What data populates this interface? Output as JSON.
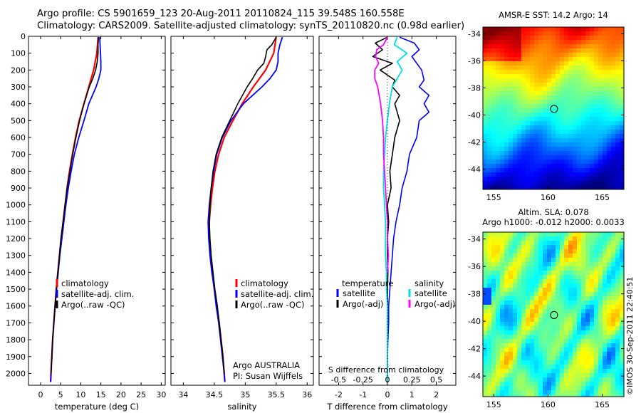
{
  "header": {
    "line1": "Argo profile: CS 5901659_123 20-Aug-2011 20110824_115 39.548S 160.558E",
    "line2": "Climatology: CARS2009. Satellite-adjusted climatology: synTS_20110820.nc (0.98d earlier)"
  },
  "stamp": "©IMOS 30-Sep-2011 22:40:51",
  "colors": {
    "climatology": "#ff0000",
    "satellite": "#0000ff",
    "argo": "#000000",
    "sat_sal": "#00e0e0",
    "argo_sal": "#ff00ff"
  },
  "chart_data": [
    {
      "type": "line",
      "id": "temp",
      "xlabel": "temperature (deg C)",
      "xlim": [
        -3,
        31
      ],
      "ylim": [
        0,
        2070
      ],
      "xticks": [
        0,
        5,
        10,
        15,
        20,
        25,
        30
      ],
      "yticks": [
        0,
        100,
        200,
        300,
        400,
        500,
        600,
        700,
        800,
        900,
        1000,
        1100,
        1200,
        1300,
        1400,
        1500,
        1600,
        1700,
        1800,
        1900,
        2000
      ],
      "legend": {
        "entries": [
          "climatology",
          "satellite-adj. clim.",
          "Argo(..raw -QC)"
        ],
        "colors": [
          "#ff0000",
          "#0000ff",
          "#000000"
        ]
      },
      "series": [
        {
          "name": "climatology",
          "color": "#ff0000",
          "width": 2.2,
          "y": [
            5,
            100,
            200,
            300,
            400,
            500,
            600,
            700,
            800,
            900,
            1000,
            1100,
            1200,
            1300,
            1400,
            1500,
            1600,
            1700,
            1800,
            1900,
            2000,
            2050
          ],
          "x": [
            14.3,
            14.0,
            13.2,
            12.0,
            10.8,
            9.6,
            8.7,
            7.9,
            7.2,
            6.6,
            6.1,
            5.6,
            5.1,
            4.7,
            4.3,
            3.9,
            3.6,
            3.3,
            3.0,
            2.8,
            2.6,
            2.5
          ]
        },
        {
          "name": "satellite-adj. clim.",
          "color": "#0000ff",
          "width": 1.8,
          "y": [
            5,
            50,
            100,
            150,
            200,
            250,
            300,
            400,
            500,
            600,
            700,
            800,
            900,
            1000,
            1100,
            1200,
            1300,
            1400,
            1500,
            1600,
            1700,
            1800,
            1900,
            2000,
            2050
          ],
          "x": [
            14.7,
            14.8,
            14.9,
            15.0,
            15.0,
            14.5,
            13.8,
            12.0,
            10.8,
            9.5,
            8.4,
            7.6,
            6.9,
            6.3,
            5.8,
            5.3,
            4.8,
            4.4,
            4.0,
            3.6,
            3.3,
            3.0,
            2.8,
            2.6,
            2.5
          ]
        },
        {
          "name": "Argo(..raw -QC)",
          "color": "#000000",
          "width": 1.6,
          "y": [
            5,
            50,
            100,
            150,
            200,
            250,
            300,
            400,
            500,
            600,
            700,
            800,
            900,
            1000,
            1100,
            1200,
            1300,
            1400,
            1500,
            1600,
            1700,
            1800,
            1900,
            2000
          ],
          "x": [
            14.4,
            14.3,
            14.3,
            14.1,
            13.7,
            13.0,
            12.1,
            10.8,
            9.7,
            8.8,
            8.0,
            7.3,
            6.6,
            6.1,
            5.6,
            5.1,
            4.7,
            4.3,
            3.9,
            3.6,
            3.3,
            3.0,
            2.8,
            2.6
          ]
        }
      ]
    },
    {
      "type": "line",
      "id": "sal",
      "xlabel": "salinity",
      "xlim": [
        33.8,
        36.1
      ],
      "ylim": [
        0,
        2070
      ],
      "xticks": [
        34,
        34.5,
        35,
        35.5,
        36
      ],
      "xticklabels": [
        "34",
        "34.5",
        "35",
        "35.5",
        "36"
      ],
      "yticks": [
        0,
        100,
        200,
        300,
        400,
        500,
        600,
        700,
        800,
        900,
        1000,
        1100,
        1200,
        1300,
        1400,
        1500,
        1600,
        1700,
        1800,
        1900,
        2000
      ],
      "legend": {
        "entries": [
          "climatology",
          "satellite-adj. clim.",
          "Argo(..raw -QC)"
        ],
        "colors": [
          "#ff0000",
          "#0000ff",
          "#000000"
        ]
      },
      "annotation": {
        "line1": "Argo AUSTRALIA",
        "line2": "PI: Susan Wijffels"
      },
      "series": [
        {
          "name": "climatology",
          "color": "#ff0000",
          "width": 2.2,
          "y": [
            5,
            100,
            200,
            300,
            400,
            500,
            600,
            700,
            800,
            900,
            1000,
            1100,
            1200,
            1300,
            1400,
            1500,
            1600,
            1700,
            1800,
            1900,
            2000,
            2050
          ],
          "x": [
            35.5,
            35.46,
            35.33,
            35.13,
            34.95,
            34.8,
            34.66,
            34.57,
            34.51,
            34.47,
            34.44,
            34.42,
            34.42,
            34.44,
            34.47,
            34.5,
            34.54,
            34.58,
            34.61,
            34.64,
            34.66,
            34.67
          ]
        },
        {
          "name": "satellite-adj. clim.",
          "color": "#0000ff",
          "width": 1.8,
          "y": [
            5,
            50,
            100,
            150,
            200,
            250,
            300,
            400,
            500,
            600,
            700,
            800,
            900,
            1000,
            1100,
            1200,
            1300,
            1400,
            1500,
            1600,
            1700,
            1800,
            1900,
            2000,
            2050
          ],
          "x": [
            35.6,
            35.56,
            35.53,
            35.53,
            35.5,
            35.4,
            35.27,
            34.97,
            34.77,
            34.63,
            34.54,
            34.49,
            34.45,
            34.42,
            34.4,
            34.41,
            34.43,
            34.46,
            34.5,
            34.53,
            34.57,
            34.6,
            34.63,
            34.66,
            34.67
          ]
        },
        {
          "name": "Argo(..raw -QC)",
          "color": "#000000",
          "width": 1.6,
          "y": [
            5,
            50,
            80,
            120,
            160,
            200,
            250,
            300,
            400,
            500,
            600,
            700,
            800,
            900,
            1000,
            1100,
            1200,
            1300,
            1400,
            1500,
            1600,
            1700,
            1800,
            1900,
            2000
          ],
          "x": [
            35.5,
            35.43,
            35.35,
            35.33,
            35.3,
            35.2,
            35.12,
            35.03,
            34.88,
            34.75,
            34.62,
            34.53,
            34.48,
            34.45,
            34.43,
            34.42,
            34.43,
            34.45,
            34.48,
            34.51,
            34.55,
            34.58,
            34.61,
            34.64,
            34.66
          ]
        }
      ]
    },
    {
      "type": "line",
      "id": "diff",
      "xlabel": "T difference from climatology",
      "xlabel2": "S difference from climatology",
      "xlim": [
        -2.8,
        2.8
      ],
      "ylim": [
        0,
        2070
      ],
      "xticks": [
        -2,
        -1,
        0,
        1,
        2
      ],
      "xticks2": [
        -0.5,
        -0.25,
        0,
        0.25,
        0.5
      ],
      "xticklabels2": [
        "-0.5",
        "-0.25",
        "0",
        "0.25",
        "0.5"
      ],
      "s_scale": 4,
      "yticks": [
        0,
        100,
        200,
        300,
        400,
        500,
        600,
        700,
        800,
        900,
        1000,
        1100,
        1200,
        1300,
        1400,
        1500,
        1600,
        1700,
        1800,
        1900,
        2000
      ],
      "legend": {
        "temperature": {
          "title": "temperature",
          "entries": [
            "satellite",
            "Argo(-adj)"
          ],
          "colors": [
            "#0000ff",
            "#000000"
          ]
        },
        "salinity": {
          "title": "salinity",
          "entries": [
            "satellite",
            "Argo(-adj)"
          ],
          "colors": [
            "#00e0e0",
            "#ff00ff"
          ]
        }
      },
      "series": [
        {
          "name": "satellite",
          "quantity": "temperature",
          "color": "#0000ff",
          "width": 1.6,
          "y": [
            5,
            40,
            80,
            120,
            160,
            200,
            260,
            300,
            350,
            400,
            450,
            500,
            600,
            700,
            800,
            900,
            1000,
            1100,
            1200,
            1300,
            1400,
            1500,
            1600,
            1700,
            1800,
            1900,
            2000,
            2050
          ],
          "x": [
            0.5,
            1.1,
            1.3,
            1.0,
            1.2,
            1.4,
            1.5,
            1.3,
            1.7,
            1.5,
            1.7,
            1.3,
            1.2,
            0.9,
            0.8,
            0.6,
            0.5,
            0.35,
            0.25,
            0.2,
            0.15,
            0.1,
            0.05,
            0.05,
            0.02,
            0.0,
            0.0,
            0.0
          ]
        },
        {
          "name": "Argo(-adj)",
          "quantity": "temperature",
          "color": "#000000",
          "width": 1.6,
          "y": [
            5,
            40,
            80,
            120,
            160,
            200,
            260,
            300,
            350,
            400,
            450,
            500,
            600,
            700,
            800,
            900,
            1000,
            1100,
            1200,
            1300,
            1400,
            1500,
            1600,
            1700,
            1800,
            1900,
            2000
          ],
          "x": [
            0.0,
            -0.5,
            -0.2,
            -0.6,
            0.2,
            -0.3,
            0.3,
            0.2,
            0.5,
            0.3,
            0.4,
            0.5,
            0.3,
            0.2,
            0.1,
            0.15,
            0.0,
            0.05,
            0.0,
            0.0,
            0.02,
            0.0,
            0.01,
            0.0,
            0.0,
            0.0,
            0.0
          ]
        },
        {
          "name": "satellite",
          "quantity": "salinity",
          "color": "#00e0e0",
          "width": 1.8,
          "y": [
            5,
            50,
            100,
            150,
            200,
            300,
            400,
            500,
            600,
            700,
            800,
            900,
            1000,
            1100,
            1200,
            1300,
            1400,
            1500,
            1600,
            1700,
            1800,
            1900,
            2000,
            2050
          ],
          "x": [
            0.1,
            0.07,
            0.2,
            0.1,
            0.15,
            0.05,
            0.02,
            0.0,
            -0.02,
            -0.03,
            -0.04,
            -0.04,
            -0.03,
            -0.02,
            -0.02,
            -0.02,
            -0.01,
            -0.01,
            0.0,
            0.0,
            0.0,
            0.0,
            0.0,
            0.0
          ]
        },
        {
          "name": "Argo(-adj)",
          "quantity": "salinity",
          "color": "#ff00ff",
          "width": 1.8,
          "y": [
            5,
            50,
            80,
            120,
            160,
            200,
            250,
            300,
            400,
            500,
            600,
            700,
            800,
            900,
            1000,
            1100,
            1200,
            1300,
            1400
          ],
          "x": [
            0.0,
            -0.04,
            -0.11,
            -0.12,
            -0.09,
            -0.13,
            -0.13,
            -0.1,
            -0.07,
            -0.05,
            -0.04,
            -0.04,
            -0.03,
            -0.02,
            -0.01,
            0.0,
            0.0,
            0.01,
            0.0
          ]
        }
      ]
    },
    {
      "type": "heatmap",
      "id": "sst",
      "title": "AMSR-E SST: 14.2 Argo: 14",
      "xlim": [
        154,
        167
      ],
      "ylim": [
        -45.5,
        -33.5
      ],
      "xticks": [
        155,
        160,
        165
      ],
      "yticks": [
        -34,
        -36,
        -38,
        -40,
        -42,
        -44
      ],
      "marker": {
        "lon": 160.558,
        "lat": -39.548
      },
      "colors": [
        "#00007f",
        "#0000ff",
        "#007fff",
        "#00ffff",
        "#7fff7f",
        "#ffff00",
        "#ff7f00",
        "#ff0000",
        "#7f0000"
      ]
    },
    {
      "type": "heatmap",
      "id": "sla",
      "title": "Altim. SLA: 0.078",
      "title2": "Argo h1000: -0.012 h2000: 0.0033",
      "xlim": [
        154,
        167
      ],
      "ylim": [
        -45.5,
        -33.5
      ],
      "xticks": [
        155,
        160,
        165
      ],
      "yticks": [
        -34,
        -36,
        -38,
        -40,
        -42,
        -44
      ],
      "marker": {
        "lon": 160.558,
        "lat": -39.548
      },
      "colors": [
        "#00007f",
        "#0000ff",
        "#007fff",
        "#00ffff",
        "#7fff7f",
        "#ffff00",
        "#ff7f00",
        "#ff0000",
        "#7f0000"
      ]
    }
  ]
}
